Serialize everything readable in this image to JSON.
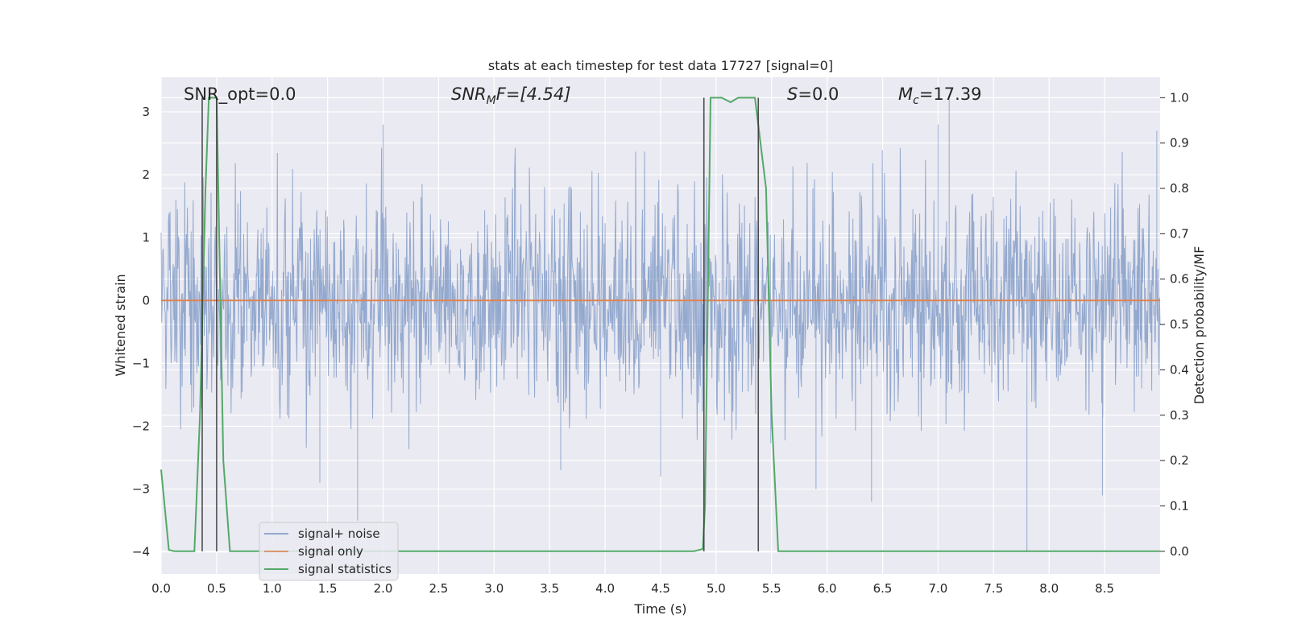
{
  "chart_data": {
    "type": "line",
    "title": "stats at each timestep for test data 17727 [signal=0]",
    "xlabel": "Time (s)",
    "ylabel": "Whitened strain",
    "y2label": "Detection probability/MF",
    "xlim": [
      0.0,
      9.0
    ],
    "ylim": [
      -4.35,
      3.55
    ],
    "y2lim": [
      -0.05,
      1.045
    ],
    "grid": true,
    "xticks": [
      0.0,
      0.5,
      1.0,
      1.5,
      2.0,
      2.5,
      3.0,
      3.5,
      4.0,
      4.5,
      5.0,
      5.5,
      6.0,
      6.5,
      7.0,
      7.5,
      8.0,
      8.5
    ],
    "xtick_labels": [
      "0.0",
      "0.5",
      "1.0",
      "1.5",
      "2.0",
      "2.5",
      "3.0",
      "3.5",
      "4.0",
      "4.5",
      "5.0",
      "5.5",
      "6.0",
      "6.5",
      "7.0",
      "7.5",
      "8.0",
      "8.5"
    ],
    "yticks": [
      3,
      2,
      1,
      0,
      -1,
      -2,
      -3,
      -4
    ],
    "ytick_labels": [
      "3",
      "2",
      "1",
      "0",
      "−1",
      "−2",
      "−3",
      "−4"
    ],
    "y2ticks": [
      1.0,
      0.9,
      0.8,
      0.7,
      0.6,
      0.5,
      0.4,
      0.3,
      0.2,
      0.1,
      0.0
    ],
    "y2tick_labels": [
      "1.0",
      "0.9",
      "0.8",
      "0.7",
      "0.6",
      "0.5",
      "0.4",
      "0.3",
      "0.2",
      "0.1",
      "0.0"
    ],
    "annotations": {
      "snr_opt": "SNR_opt=0.0",
      "snr_mf_main": "SNR",
      "snr_mf_sub": "M",
      "snr_mf_rest": "F=[4.54]",
      "s_italic": "S",
      "s_rest": "=0.0",
      "mc_main": "M",
      "mc_sub": "c",
      "mc_rest": "=17.39"
    },
    "legend": {
      "placement": "lower-left",
      "entries": [
        "signal+ noise",
        "signal only",
        "signal statistics"
      ]
    },
    "series": [
      {
        "name": "signal+ noise",
        "color": "#4c72b0",
        "alpha": 0.5,
        "kind": "noise",
        "envelope": {
          "typical_max": 1.8,
          "typical_min": -1.8
        },
        "peaks": [
          {
            "x": 1.77,
            "y": -3.5
          },
          {
            "x": 1.43,
            "y": -2.9
          },
          {
            "x": 2.0,
            "y": 2.8
          },
          {
            "x": 7.1,
            "y": 3.2
          },
          {
            "x": 7.8,
            "y": -4.0
          },
          {
            "x": 7.0,
            "y": 2.8
          },
          {
            "x": 8.48,
            "y": -3.1
          },
          {
            "x": 8.97,
            "y": 2.7
          },
          {
            "x": 5.9,
            "y": -3.0
          },
          {
            "x": 6.4,
            "y": -3.2
          },
          {
            "x": 4.5,
            "y": -2.8
          },
          {
            "x": 3.6,
            "y": -2.7
          }
        ]
      },
      {
        "name": "signal only",
        "color": "#dd8452",
        "kind": "line",
        "x": [
          0.0,
          9.0
        ],
        "y": [
          0.0,
          0.0
        ]
      },
      {
        "name": "signal statistics",
        "color": "#55a868",
        "axis": "right",
        "kind": "line",
        "x": [
          0.0,
          0.07,
          0.12,
          0.2,
          0.3,
          0.35,
          0.4,
          0.43,
          0.5,
          0.56,
          0.62,
          0.7,
          0.8,
          1.5,
          2.5,
          3.5,
          4.5,
          4.8,
          4.88,
          4.9,
          4.95,
          5.05,
          5.13,
          5.2,
          5.35,
          5.45,
          5.5,
          5.56,
          5.7,
          6.5,
          7.5,
          8.5,
          9.0
        ],
        "y": [
          0.18,
          0.003,
          0.0,
          0.0,
          0.0,
          0.3,
          0.8,
          1.0,
          1.0,
          0.2,
          0.0,
          0.0,
          0.0,
          0.0,
          0.0,
          0.0,
          0.0,
          0.0,
          0.005,
          0.1,
          1.0,
          1.0,
          0.99,
          1.0,
          1.0,
          0.8,
          0.3,
          0.0,
          0.0,
          0.0,
          0.0,
          0.0,
          0.0
        ]
      }
    ],
    "vlines": [
      0.37,
      0.5,
      4.89,
      5.38
    ],
    "vlines_color": "#333333"
  }
}
